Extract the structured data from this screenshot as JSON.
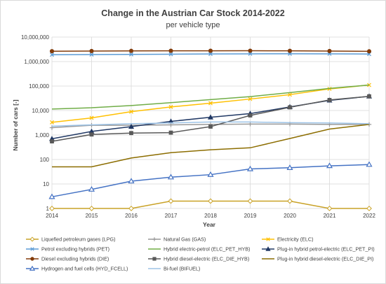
{
  "chart_data": {
    "type": "line",
    "title": "Change in the Austrian Car Stock 2014-2022",
    "subtitle": "per vehicle type",
    "xlabel": "Year",
    "ylabel": "Number of cars [-]",
    "yscale": "log",
    "ylim": [
      1,
      10000000
    ],
    "y_ticks": [
      "1",
      "10",
      "100",
      "1,000",
      "10,000",
      "100,000",
      "1,000,000",
      "10,000,000"
    ],
    "x": [
      2014,
      2015,
      2016,
      2017,
      2018,
      2019,
      2020,
      2021,
      2022
    ],
    "grid": true,
    "legend_position": "bottom",
    "series": [
      {
        "name": "Liquefied petroleum gases (LPG)",
        "color": "#c9a227",
        "marker": "diamond-open",
        "values": [
          1,
          1,
          1,
          2,
          2,
          2,
          2,
          1,
          1
        ]
      },
      {
        "name": "Natural Gas (GAS)",
        "color": "#999999",
        "marker": "plus",
        "values": [
          2000,
          2500,
          2500,
          2600,
          2700,
          2800,
          2800,
          2700,
          2700
        ]
      },
      {
        "name": "Electricity (ELC)",
        "color": "#ffc000",
        "marker": "cross",
        "values": [
          3300,
          5000,
          9000,
          14000,
          20000,
          29500,
          44500,
          76500,
          110000
        ]
      },
      {
        "name": "Petrol excluding hybrids (PET)",
        "color": "#5b9bd5",
        "marker": "cross",
        "values": [
          1900000,
          1930000,
          1960000,
          2000000,
          2040000,
          2070000,
          2080000,
          2070000,
          2030000
        ]
      },
      {
        "name": "Hybrid electric-petrol (ELC_PET_HYB)",
        "color": "#70ad47",
        "marker": "line",
        "values": [
          11500,
          13000,
          16000,
          21000,
          28000,
          37000,
          54000,
          80000,
          110000
        ]
      },
      {
        "name": "Plug-in hybrid petrol-electric (ELC_PET_PI)",
        "color": "#203864",
        "marker": "triangle",
        "values": [
          700,
          1400,
          2200,
          3600,
          5300,
          7500,
          14000,
          26000,
          38000
        ]
      },
      {
        "name": "Diesel excluding hybrids (DIE)",
        "color": "#833c0b",
        "marker": "circle",
        "values": [
          2650000,
          2690000,
          2730000,
          2760000,
          2760000,
          2770000,
          2740000,
          2690000,
          2620000
        ]
      },
      {
        "name": "Hybrid diesel-electric (ELC_DIE_HYB)",
        "color": "#595959",
        "marker": "square",
        "values": [
          550,
          1050,
          1200,
          1250,
          2200,
          6300,
          13500,
          27000,
          38000
        ]
      },
      {
        "name": "Plug-in hybrid diesel-electric (ELC_DIE_PI)",
        "color": "#8c6d00",
        "marker": "line",
        "values": [
          50,
          50,
          115,
          190,
          250,
          300,
          720,
          1750,
          2700
        ]
      },
      {
        "name": "Hydrogen and fuel cells (HYD_FCELL)",
        "color": "#4472c4",
        "marker": "triangle-open",
        "values": [
          3,
          6,
          13,
          19,
          24,
          41,
          46,
          55,
          62
        ]
      },
      {
        "name": "Bi-fuel (BIFUEL)",
        "color": "#9dc3e6",
        "marker": "line",
        "values": [
          2300,
          2600,
          2900,
          3100,
          3400,
          3400,
          3200,
          3100,
          2900
        ]
      }
    ]
  }
}
